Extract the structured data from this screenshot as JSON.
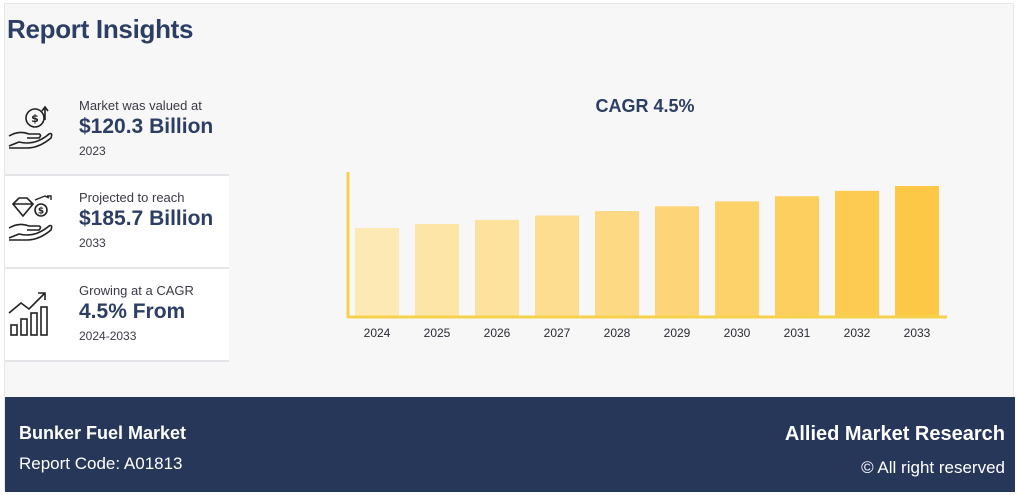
{
  "header": {
    "title": "Report Insights"
  },
  "insights": [
    {
      "label": "Market was valued at",
      "value": "$120.3 Billion",
      "year": "2023",
      "icon": "money-hand-icon"
    },
    {
      "label": "Projected to reach",
      "value": "$185.7 Billion",
      "year": "2033",
      "icon": "diamond-coin-hand-icon"
    },
    {
      "label": "Growing at a CAGR",
      "value": "4.5% From",
      "year": "2024-2033",
      "icon": "growth-chart-icon"
    }
  ],
  "chart_data": {
    "type": "bar",
    "title": "CAGR 4.5%",
    "categories": [
      "2024",
      "2025",
      "2026",
      "2027",
      "2028",
      "2029",
      "2030",
      "2031",
      "2032",
      "2033"
    ],
    "values": [
      125.7,
      131.4,
      137.3,
      143.5,
      149.9,
      156.7,
      163.7,
      171.1,
      178.8,
      185.7
    ],
    "colors": [
      "#fde9b3",
      "#fde5a8",
      "#fde29d",
      "#fddd8f",
      "#fdd984",
      "#fdd578",
      "#fdd26b",
      "#fdcf5e",
      "#fdcb51",
      "#fdc845"
    ],
    "axis_color": "#f6d24c",
    "ylim": [
      0,
      185.7
    ],
    "grid": false
  },
  "footer": {
    "market": "Bunker Fuel Market",
    "report_code": "Report Code: A01813",
    "brand": "Allied Market Research",
    "rights": "© All right reserved"
  }
}
